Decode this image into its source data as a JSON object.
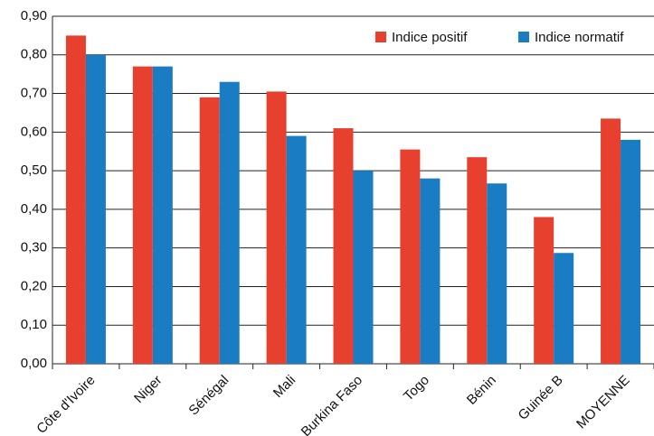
{
  "chart_data": {
    "type": "bar",
    "categories": [
      "Côte d'Ivoire",
      "Niger",
      "Sénégal",
      "Mali",
      "Burkina Faso",
      "Togo",
      "Bénin",
      "Guinée B",
      "MOYENNE"
    ],
    "series": [
      {
        "name": "Indice positif",
        "color": "#e8402e",
        "values": [
          0.85,
          0.77,
          0.69,
          0.705,
          0.61,
          0.555,
          0.535,
          0.38,
          0.635
        ]
      },
      {
        "name": "Indice normatif",
        "color": "#1a7dc4",
        "values": [
          0.8,
          0.77,
          0.73,
          0.59,
          0.5,
          0.48,
          0.467,
          0.287,
          0.58
        ]
      }
    ],
    "ylim": [
      0,
      0.9
    ],
    "yticks": [
      {
        "value": 0,
        "label": "0,00"
      },
      {
        "value": 0.1,
        "label": "0,10"
      },
      {
        "value": 0.2,
        "label": "0,20"
      },
      {
        "value": 0.3,
        "label": "0,30"
      },
      {
        "value": 0.4,
        "label": "0,40"
      },
      {
        "value": 0.5,
        "label": "0,50"
      },
      {
        "value": 0.6,
        "label": "0,60"
      },
      {
        "value": 0.7,
        "label": "0,70"
      },
      {
        "value": 0.8,
        "label": "0,80"
      },
      {
        "value": 0.9,
        "label": "0,90"
      }
    ],
    "grid": true,
    "legend": "upper right"
  }
}
